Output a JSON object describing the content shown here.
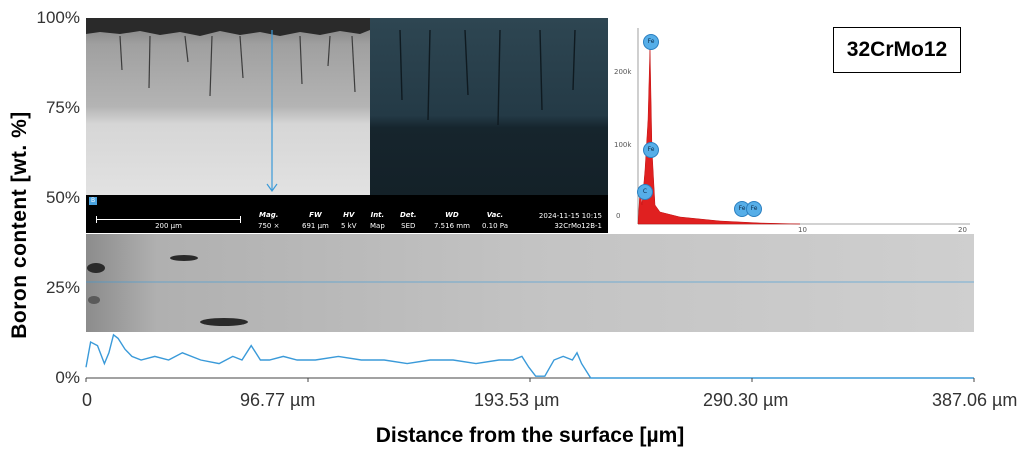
{
  "material_label": "32CrMo12",
  "chart_data": {
    "type": "line",
    "title": "",
    "xlabel": "Distance from the surface [µm]",
    "ylabel": "Boron content [wt. %]",
    "x_ticks": [
      "0",
      "96.77 µm",
      "193.53 µm",
      "290.30 µm",
      "387.06 µm"
    ],
    "y_ticks": [
      "100%",
      "75%",
      "50%",
      "25%",
      "0%"
    ],
    "xlim": [
      0,
      387.06
    ],
    "ylim": [
      0,
      100
    ],
    "grid": false,
    "legend": "none",
    "line_color": "#3a9ad9",
    "series": [
      {
        "x": [
          0,
          2,
          5,
          8,
          10,
          12,
          14,
          17,
          20,
          24,
          30,
          36,
          42,
          50,
          58,
          64,
          68,
          72,
          76,
          80,
          86,
          92,
          100,
          110,
          120,
          130,
          140,
          150,
          160,
          170,
          180,
          186,
          190,
          193,
          196,
          200,
          204,
          208,
          212,
          214,
          216,
          220,
          230,
          260,
          290,
          330,
          360,
          387.06
        ],
        "y": [
          3,
          10,
          9,
          4,
          7,
          12,
          11,
          8,
          6,
          5,
          6,
          5,
          7,
          5,
          4,
          6,
          5,
          9,
          5,
          5,
          6,
          5,
          5,
          6,
          5,
          5,
          4,
          5,
          5,
          4,
          5,
          5,
          6,
          3,
          0.5,
          0.5,
          5,
          6,
          5,
          7,
          4,
          0,
          0,
          0,
          0,
          0,
          0,
          0
        ]
      }
    ]
  },
  "sem": {
    "scale_bar": "200 µm",
    "columns": [
      {
        "h": "Mag.",
        "v": "750 ×"
      },
      {
        "h": "FW",
        "v": "691 µm"
      },
      {
        "h": "HV",
        "v": "5 kV"
      },
      {
        "h": "Int.",
        "v": "Map"
      },
      {
        "h": "Det.",
        "v": "SED"
      },
      {
        "h": "WD",
        "v": "7.516 mm"
      },
      {
        "h": "Vac.",
        "v": "0.10 Pa"
      }
    ],
    "datetime": "2024-11-15 10:15",
    "sample_id": "32CrMo12B-1",
    "tag": "B"
  },
  "eds": {
    "y_ticks": [
      "200k",
      "100k",
      "0"
    ],
    "x_ticks": [
      "10",
      "20"
    ],
    "peak_labels": [
      "Fe",
      "Fe",
      "Fe",
      "Fe",
      "C"
    ],
    "fill_color": "#e02020"
  }
}
